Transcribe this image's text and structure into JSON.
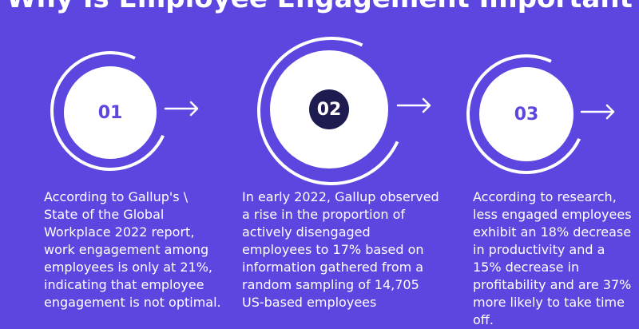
{
  "title": "Why Is Employee Engagement Important",
  "steps": [
    {
      "number": "01",
      "text": "According to Gallup's \\ State of the Global Workplace 2022 report, work engagement among employees is only at 21%, indicating that employee engagement is not optimal."
    },
    {
      "number": "02",
      "text": "In early 2022, Gallup observed a rise in the proportion of actively disengaged employees to 17% based on information gathered from a random sampling of 14,705 US-based employees"
    },
    {
      "number": "03",
      "text": "According to research, less engaged employees exhibit an 18% decrease in productivity and a 15% decrease in profitability and are 37% more likely to take time off."
    }
  ],
  "colors": {
    "background": "#5b46e0",
    "accent_dark": "#1d1b4f",
    "white": "#ffffff"
  }
}
